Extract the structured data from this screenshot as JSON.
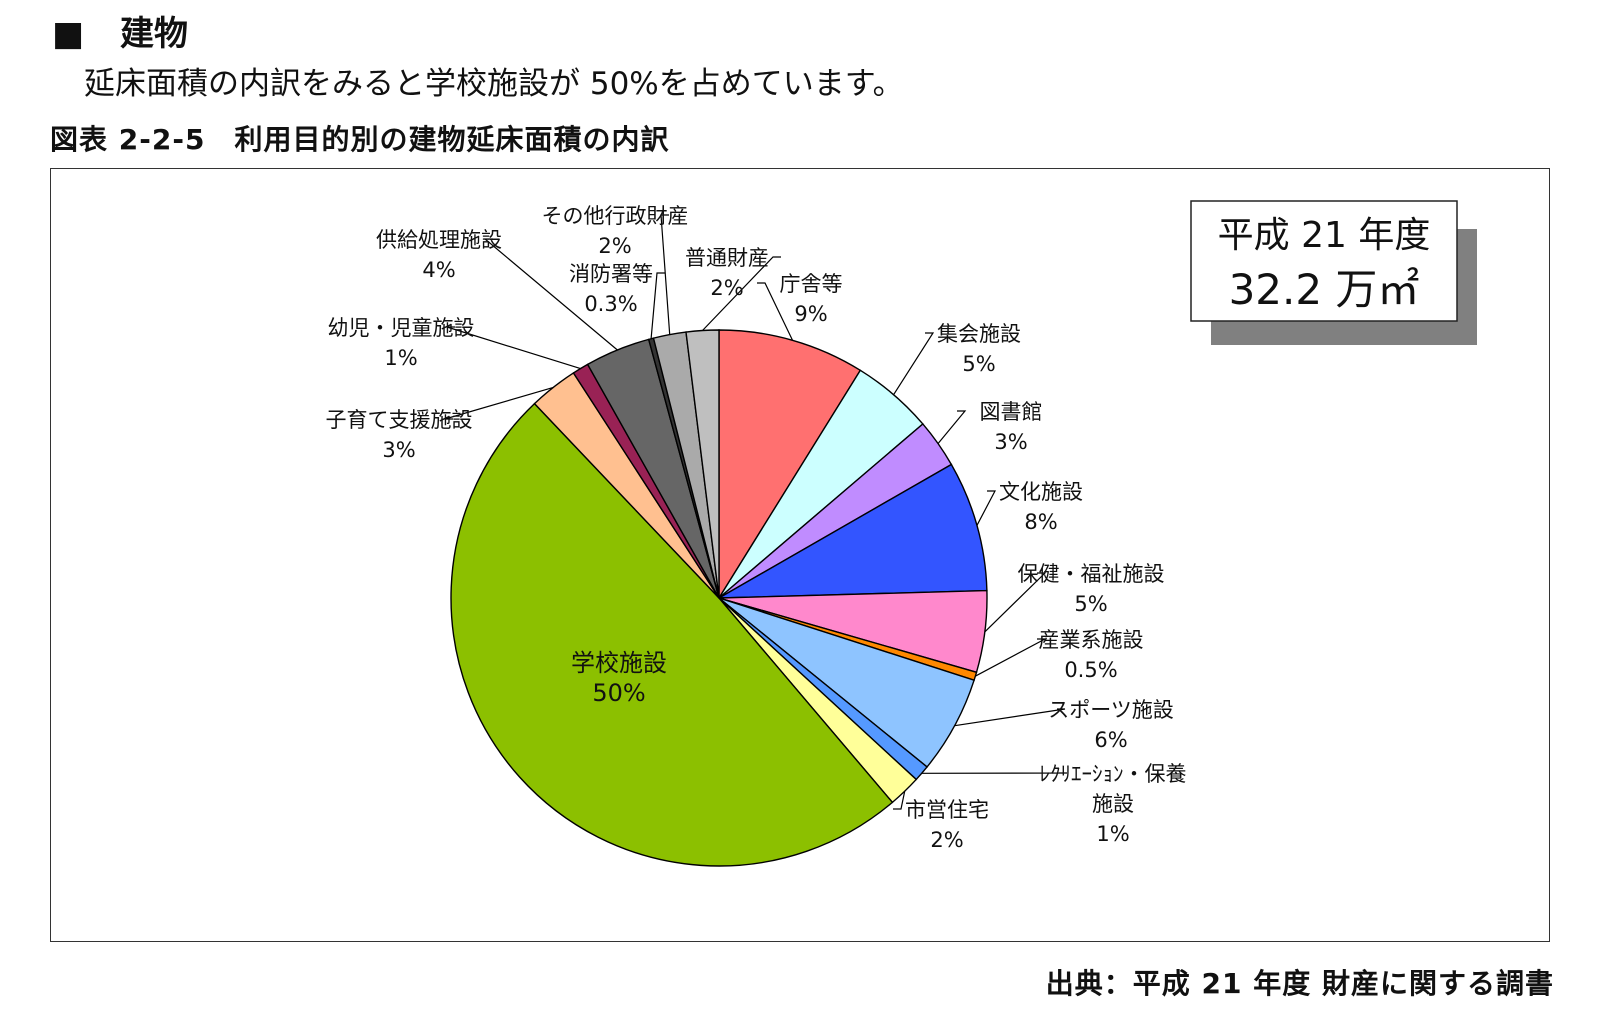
{
  "heading": {
    "marker": "■",
    "text": "建物"
  },
  "lead_text": "延床面積の内訳をみると学校施設が 50%を占めています。",
  "figure_title": "図表 2-2-5　利用目的別の建物延床面積の内訳",
  "total_box": {
    "line1": "平成 21 年度",
    "line2": "32.2 万㎡"
  },
  "source": "出典：平成 21 年度 財産に関する調書",
  "chart_data": {
    "type": "pie",
    "title": "",
    "slices": [
      {
        "name": "庁舎等",
        "label_lines": [
          "庁舎等"
        ],
        "value": 9,
        "value_label": "9%",
        "color": "#FF7070"
      },
      {
        "name": "集会施設",
        "label_lines": [
          "集会施設"
        ],
        "value": 5,
        "value_label": "5%",
        "color": "#CCFFFF"
      },
      {
        "name": "図書館",
        "label_lines": [
          "図書館"
        ],
        "value": 3,
        "value_label": "3%",
        "color": "#C08CFF"
      },
      {
        "name": "文化施設",
        "label_lines": [
          "文化施設"
        ],
        "value": 8,
        "value_label": "8%",
        "color": "#3355FF"
      },
      {
        "name": "保健・福祉施設",
        "label_lines": [
          "保健・福祉施設"
        ],
        "value": 5,
        "value_label": "5%",
        "color": "#FF88CC"
      },
      {
        "name": "産業系施設",
        "label_lines": [
          "産業系施設"
        ],
        "value": 0.5,
        "value_label": "0.5%",
        "color": "#FF8800"
      },
      {
        "name": "スポーツ施設",
        "label_lines": [
          "スポーツ施設"
        ],
        "value": 6,
        "value_label": "6%",
        "color": "#8EC4FF"
      },
      {
        "name": "レクリエーション・保養施設",
        "label_lines": [
          "ﾚｸﾘｴｰｼｮﾝ・保養",
          "施設"
        ],
        "value": 1,
        "value_label": "1%",
        "color": "#5599FF"
      },
      {
        "name": "市営住宅",
        "label_lines": [
          "市営住宅"
        ],
        "value": 2,
        "value_label": "2%",
        "color": "#FFFF99"
      },
      {
        "name": "学校施設",
        "label_lines": [
          "学校施設"
        ],
        "value": 50,
        "value_label": "50%",
        "color": "#8CC000"
      },
      {
        "name": "子育て支援施設",
        "label_lines": [
          "子育て支援施設"
        ],
        "value": 3,
        "value_label": "3%",
        "color": "#FFC090"
      },
      {
        "name": "幼児・児童施設",
        "label_lines": [
          "幼児・児童施設"
        ],
        "value": 1,
        "value_label": "1%",
        "color": "#992255"
      },
      {
        "name": "供給処理施設",
        "label_lines": [
          "供給処理施設"
        ],
        "value": 4,
        "value_label": "4%",
        "color": "#666666"
      },
      {
        "name": "消防署等",
        "label_lines": [
          "消防署等"
        ],
        "value": 0.3,
        "value_label": "0.3%",
        "color": "#333333"
      },
      {
        "name": "その他行政財産",
        "label_lines": [
          "その他行政財産"
        ],
        "value": 2,
        "value_label": "2%",
        "color": "#AAAAAA"
      },
      {
        "name": "普通財産",
        "label_lines": [
          "普通財産"
        ],
        "value": 2,
        "value_label": "2%",
        "color": "#BFBFBF"
      }
    ]
  }
}
